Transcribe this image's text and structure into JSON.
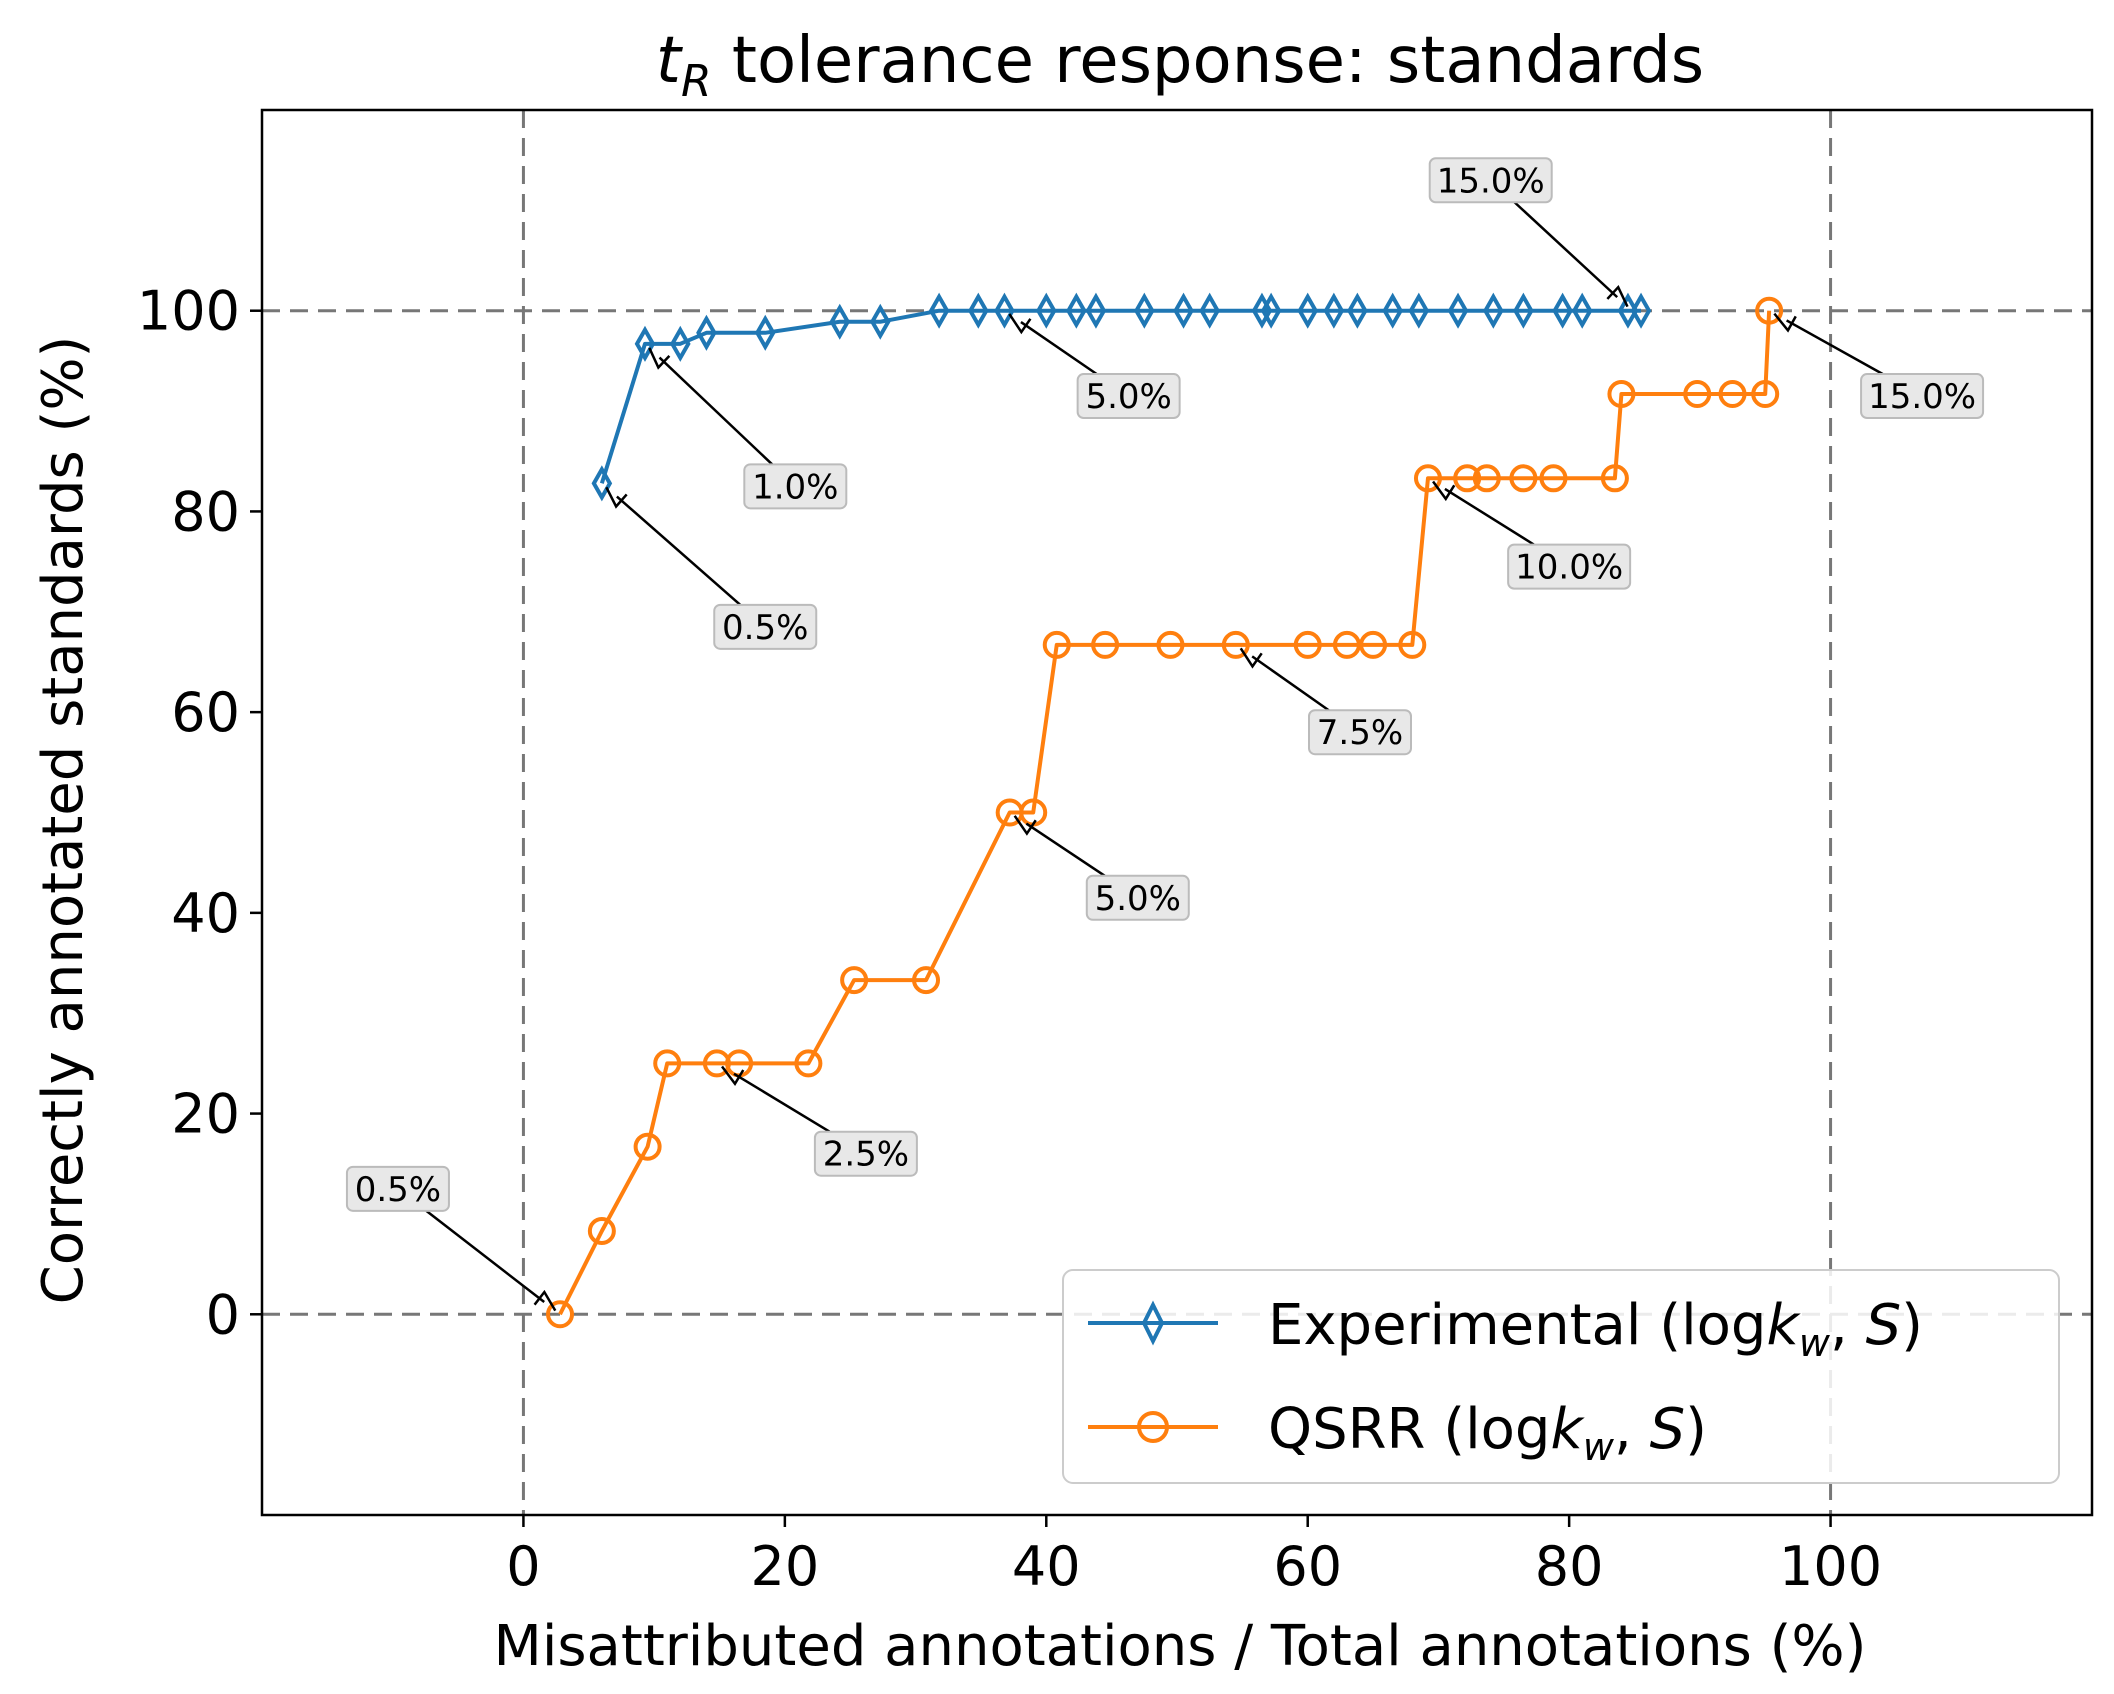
{
  "chart_data": {
    "type": "line",
    "title": "t_R tolerance response: standards",
    "title_parts": {
      "main": "t",
      "sub": "R",
      "rest": " tolerance response: standards"
    },
    "xlabel": "Misattributed annotations / Total annotations (%)",
    "ylabel": "Correctly annotated standards (%)",
    "xlim": [
      -20,
      120
    ],
    "ylim": [
      -20,
      120
    ],
    "xticks": [
      0,
      20,
      40,
      60,
      80,
      100
    ],
    "yticks": [
      0,
      20,
      40,
      60,
      80,
      100
    ],
    "reference_lines": {
      "x": [
        0,
        100
      ],
      "y": [
        0,
        100
      ]
    },
    "grid": false,
    "legend_position": "lower-right",
    "series": [
      {
        "name": "Experimental (logk_w, S)",
        "name_parts": {
          "pre": "Experimental (log",
          "italic": "k",
          "sub": "w",
          "post": ", ",
          "italic2": "S",
          "end": ")"
        },
        "color": "#1f77b4",
        "marker": "thin-diamond",
        "x": [
          6.0,
          9.3,
          12.0,
          14.0,
          18.5,
          24.2,
          27.3,
          31.8,
          34.8,
          36.8,
          40.0,
          42.3,
          43.8,
          47.5,
          50.5,
          52.5,
          56.5,
          57.2,
          60.0,
          62.0,
          63.8,
          66.5,
          68.5,
          71.5,
          74.2,
          76.5,
          79.5,
          81.0,
          84.5,
          85.5
        ],
        "y": [
          82.8,
          96.7,
          96.7,
          97.8,
          97.8,
          98.9,
          98.9,
          100,
          100,
          100,
          100,
          100,
          100,
          100,
          100,
          100,
          100,
          100,
          100,
          100,
          100,
          100,
          100,
          100,
          100,
          100,
          100,
          100,
          100,
          100
        ]
      },
      {
        "name": "QSRR (logk_w, S)",
        "name_parts": {
          "pre": "QSRR (log",
          "italic": "k",
          "sub": "w",
          "post": ", ",
          "italic2": "S",
          "end": ")"
        },
        "color": "#ff7f0e",
        "marker": "circle",
        "x": [
          2.8,
          6.0,
          9.5,
          11.0,
          14.8,
          16.5,
          21.8,
          25.3,
          30.8,
          37.2,
          39.0,
          40.8,
          44.5,
          49.5,
          54.5,
          60.0,
          63.0,
          65.0,
          68.0,
          69.2,
          72.2,
          73.7,
          76.5,
          78.8,
          83.5,
          84.0,
          89.8,
          92.5,
          95.0,
          95.3
        ],
        "y": [
          0,
          8.3,
          16.7,
          25,
          25,
          25,
          25,
          33.3,
          33.3,
          50,
          50,
          66.7,
          66.7,
          66.7,
          66.7,
          66.7,
          66.7,
          66.7,
          66.7,
          83.3,
          83.3,
          83.3,
          83.3,
          83.3,
          83.3,
          91.7,
          91.7,
          91.7,
          91.7,
          100
        ]
      }
    ],
    "annotations": [
      {
        "text": "0.5%",
        "series": 0,
        "point": [
          6.0,
          82.8
        ],
        "label_at": [
          18.5,
          68.5
        ]
      },
      {
        "text": "1.0%",
        "series": 0,
        "point": [
          9.3,
          96.7
        ],
        "label_at": [
          20.8,
          82.5
        ]
      },
      {
        "text": "5.0%",
        "series": 0,
        "point": [
          36.8,
          100
        ],
        "label_at": [
          46.3,
          91.5
        ]
      },
      {
        "text": "15.0%",
        "series": 0,
        "point": [
          84.8,
          100
        ],
        "label_at": [
          74.0,
          113.0
        ]
      },
      {
        "text": "0.5%",
        "series": 1,
        "point": [
          2.8,
          0
        ],
        "label_at": [
          -9.6,
          12.5
        ]
      },
      {
        "text": "2.5%",
        "series": 1,
        "point": [
          14.8,
          25
        ],
        "label_at": [
          26.2,
          16.0
        ]
      },
      {
        "text": "5.0%",
        "series": 1,
        "point": [
          37.2,
          50
        ],
        "label_at": [
          47.0,
          41.5
        ]
      },
      {
        "text": "7.5%",
        "series": 1,
        "point": [
          54.5,
          66.7
        ],
        "label_at": [
          64.0,
          58.0
        ]
      },
      {
        "text": "10.0%",
        "series": 1,
        "point": [
          69.2,
          83.3
        ],
        "label_at": [
          80.0,
          74.5
        ]
      },
      {
        "text": "15.0%",
        "series": 1,
        "point": [
          95.3,
          100
        ],
        "label_at": [
          107.0,
          91.5
        ]
      }
    ]
  }
}
